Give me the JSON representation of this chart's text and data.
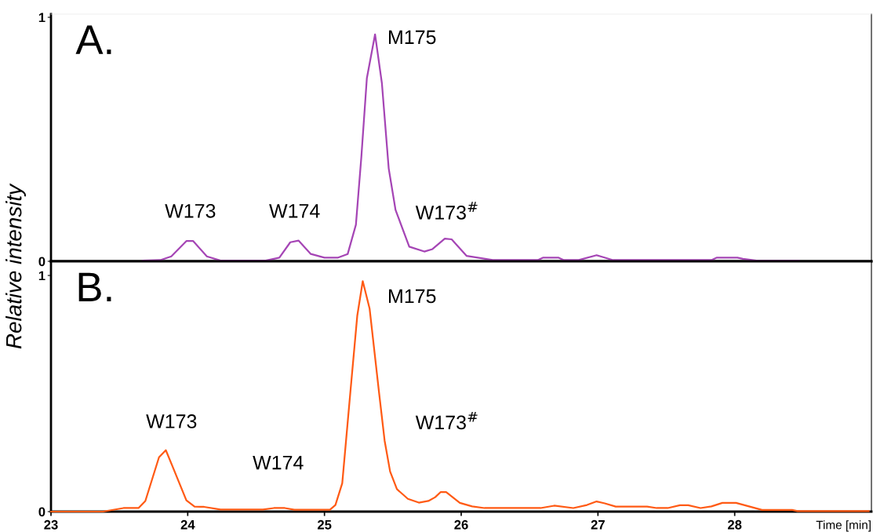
{
  "chart_data": [
    {
      "type": "line",
      "ylabel": "Relative intensity",
      "xlim": [
        23,
        29
      ],
      "ylim": [
        0,
        1.013
      ],
      "yticks": [
        0,
        1
      ],
      "tick_labels": "y",
      "grid": false,
      "marker": "none",
      "line_style": "solid",
      "annotations": [
        "A.",
        "W173",
        "W174",
        "M175",
        "W173$^{#}$"
      ],
      "series": [
        {
          "color": "#a545b5",
          "x": [
            23.67,
            23.8,
            23.88,
            23.99,
            24.04,
            24.14,
            24.24,
            24.57,
            24.67,
            24.75,
            24.81,
            24.9,
            25.0,
            25.1,
            25.17,
            25.23,
            25.27,
            25.31,
            25.37,
            25.42,
            25.47,
            25.52,
            25.62,
            25.73,
            25.79,
            25.88,
            25.93,
            26.04,
            26.23,
            26.56,
            26.6,
            26.71,
            26.75,
            26.86,
            26.99,
            27.11,
            27.45,
            27.83,
            27.87,
            28.02,
            28.06,
            28.17,
            28.47
          ],
          "values": [
            0.003,
            0.005,
            0.02,
            0.083,
            0.083,
            0.02,
            0.003,
            0.003,
            0.015,
            0.078,
            0.085,
            0.03,
            0.015,
            0.015,
            0.03,
            0.15,
            0.43,
            0.75,
            0.93,
            0.73,
            0.38,
            0.21,
            0.06,
            0.04,
            0.05,
            0.093,
            0.09,
            0.022,
            0.005,
            0.005,
            0.015,
            0.015,
            0.005,
            0.005,
            0.025,
            0.005,
            0.005,
            0.005,
            0.015,
            0.015,
            0.01,
            0.002,
            0.002
          ]
        }
      ]
    },
    {
      "type": "line",
      "xlabel": "Time [min]",
      "xlim": [
        23,
        29
      ],
      "xticks": [
        23,
        24,
        25,
        26,
        27,
        28
      ],
      "ylim": [
        0,
        1.06
      ],
      "yticks": [
        0,
        1
      ],
      "grid": false,
      "marker": "none",
      "line_style": "solid",
      "annotations": [
        "B.",
        "W173",
        "W174",
        "M175",
        "W173$^{#}$"
      ],
      "series": [
        {
          "color": "#ff5a14",
          "x": [
            23.0,
            23.38,
            23.53,
            23.64,
            23.69,
            23.79,
            23.84,
            23.89,
            23.99,
            24.05,
            24.12,
            24.24,
            24.55,
            24.63,
            24.71,
            24.78,
            25.04,
            25.08,
            25.13,
            25.19,
            25.24,
            25.28,
            25.33,
            25.4,
            25.44,
            25.48,
            25.53,
            25.61,
            25.69,
            25.76,
            25.81,
            25.85,
            25.89,
            25.99,
            26.08,
            26.17,
            26.58,
            26.68,
            26.82,
            26.92,
            26.99,
            27.05,
            27.13,
            27.36,
            27.43,
            27.51,
            27.6,
            27.66,
            27.75,
            27.83,
            27.91,
            28.01,
            28.2,
            28.42,
            28.46,
            28.98
          ],
          "values": [
            0,
            0,
            0.015,
            0.015,
            0.045,
            0.23,
            0.26,
            0.19,
            0.048,
            0.021,
            0.02,
            0.009,
            0.009,
            0.015,
            0.015,
            0.008,
            0.008,
            0.028,
            0.12,
            0.51,
            0.83,
            0.976,
            0.86,
            0.5,
            0.3,
            0.17,
            0.095,
            0.054,
            0.038,
            0.045,
            0.061,
            0.083,
            0.083,
            0.037,
            0.022,
            0.015,
            0.015,
            0.025,
            0.015,
            0.028,
            0.043,
            0.035,
            0.021,
            0.021,
            0.015,
            0.015,
            0.027,
            0.027,
            0.015,
            0.022,
            0.037,
            0.037,
            0.007,
            0.007,
            0.002,
            0.002
          ]
        }
      ]
    }
  ]
}
